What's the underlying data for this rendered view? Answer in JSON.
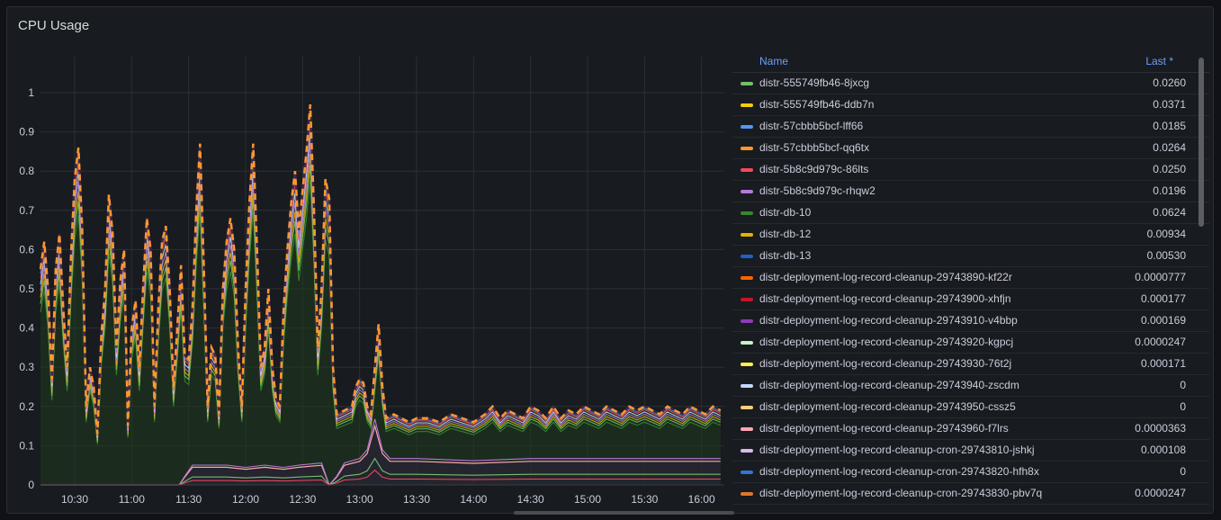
{
  "panel": {
    "title": "CPU Usage"
  },
  "chart_data": {
    "type": "line",
    "title": "CPU Usage",
    "x_ticks": [
      "10:30",
      "11:00",
      "11:30",
      "12:00",
      "12:30",
      "13:00",
      "13:30",
      "14:00",
      "14:30",
      "15:00",
      "15:30",
      "16:00"
    ],
    "y_ticks": [
      "0",
      "0.1",
      "0.2",
      "0.3",
      "0.4",
      "0.5",
      "0.6",
      "0.7",
      "0.8",
      "0.9",
      "1"
    ],
    "ylim": [
      0,
      1.0
    ],
    "grid": true,
    "legend_position": "right",
    "main_series_points": [
      [
        "10:12",
        0.55
      ],
      [
        "10:14",
        0.62
      ],
      [
        "10:16",
        0.5
      ],
      [
        "10:18",
        0.27
      ],
      [
        "10:20",
        0.55
      ],
      [
        "10:22",
        0.64
      ],
      [
        "10:24",
        0.45
      ],
      [
        "10:26",
        0.3
      ],
      [
        "10:28",
        0.58
      ],
      [
        "10:30",
        0.78
      ],
      [
        "10:32",
        0.86
      ],
      [
        "10:34",
        0.65
      ],
      [
        "10:36",
        0.2
      ],
      [
        "10:38",
        0.3
      ],
      [
        "10:40",
        0.25
      ],
      [
        "10:42",
        0.13
      ],
      [
        "10:44",
        0.38
      ],
      [
        "10:46",
        0.5
      ],
      [
        "10:48",
        0.74
      ],
      [
        "10:50",
        0.64
      ],
      [
        "10:52",
        0.35
      ],
      [
        "10:54",
        0.52
      ],
      [
        "10:56",
        0.6
      ],
      [
        "10:58",
        0.15
      ],
      [
        "11:00",
        0.4
      ],
      [
        "11:02",
        0.47
      ],
      [
        "11:04",
        0.3
      ],
      [
        "11:06",
        0.5
      ],
      [
        "11:08",
        0.68
      ],
      [
        "11:10",
        0.6
      ],
      [
        "11:12",
        0.2
      ],
      [
        "11:14",
        0.45
      ],
      [
        "11:16",
        0.62
      ],
      [
        "11:18",
        0.66
      ],
      [
        "11:20",
        0.5
      ],
      [
        "11:22",
        0.25
      ],
      [
        "11:24",
        0.4
      ],
      [
        "11:26",
        0.56
      ],
      [
        "11:28",
        0.33
      ],
      [
        "11:30",
        0.32
      ],
      [
        "11:32",
        0.45
      ],
      [
        "11:34",
        0.7
      ],
      [
        "11:36",
        0.87
      ],
      [
        "11:38",
        0.55
      ],
      [
        "11:40",
        0.2
      ],
      [
        "11:42",
        0.35
      ],
      [
        "11:44",
        0.33
      ],
      [
        "11:46",
        0.18
      ],
      [
        "11:48",
        0.5
      ],
      [
        "11:50",
        0.62
      ],
      [
        "11:52",
        0.68
      ],
      [
        "11:54",
        0.6
      ],
      [
        "11:56",
        0.35
      ],
      [
        "11:58",
        0.2
      ],
      [
        "12:00",
        0.5
      ],
      [
        "12:02",
        0.72
      ],
      [
        "12:04",
        0.87
      ],
      [
        "12:06",
        0.6
      ],
      [
        "12:08",
        0.3
      ],
      [
        "12:10",
        0.35
      ],
      [
        "12:12",
        0.5
      ],
      [
        "12:14",
        0.3
      ],
      [
        "12:16",
        0.22
      ],
      [
        "12:18",
        0.2
      ],
      [
        "12:20",
        0.45
      ],
      [
        "12:22",
        0.6
      ],
      [
        "12:24",
        0.72
      ],
      [
        "12:26",
        0.8
      ],
      [
        "12:28",
        0.65
      ],
      [
        "12:30",
        0.75
      ],
      [
        "12:32",
        0.85
      ],
      [
        "12:34",
        0.97
      ],
      [
        "12:36",
        0.7
      ],
      [
        "12:38",
        0.35
      ],
      [
        "12:40",
        0.5
      ],
      [
        "12:42",
        0.78
      ],
      [
        "12:44",
        0.73
      ],
      [
        "12:46",
        0.3
      ],
      [
        "12:48",
        0.18
      ],
      [
        "12:52",
        0.19
      ],
      [
        "12:56",
        0.2
      ],
      [
        "12:58",
        0.25
      ],
      [
        "13:00",
        0.27
      ],
      [
        "13:02",
        0.26
      ],
      [
        "13:04",
        0.2
      ],
      [
        "13:06",
        0.18
      ],
      [
        "13:08",
        0.3
      ],
      [
        "13:10",
        0.41
      ],
      [
        "13:12",
        0.25
      ],
      [
        "13:14",
        0.17
      ],
      [
        "13:18",
        0.18
      ],
      [
        "13:22",
        0.17
      ],
      [
        "13:26",
        0.16
      ],
      [
        "13:30",
        0.17
      ],
      [
        "13:36",
        0.17
      ],
      [
        "13:42",
        0.16
      ],
      [
        "13:48",
        0.18
      ],
      [
        "13:54",
        0.17
      ],
      [
        "14:00",
        0.16
      ],
      [
        "14:06",
        0.18
      ],
      [
        "14:10",
        0.2
      ],
      [
        "14:14",
        0.17
      ],
      [
        "14:18",
        0.19
      ],
      [
        "14:22",
        0.18
      ],
      [
        "14:26",
        0.17
      ],
      [
        "14:30",
        0.2
      ],
      [
        "14:34",
        0.19
      ],
      [
        "14:38",
        0.17
      ],
      [
        "14:42",
        0.2
      ],
      [
        "14:46",
        0.17
      ],
      [
        "14:50",
        0.19
      ],
      [
        "14:54",
        0.18
      ],
      [
        "14:58",
        0.2
      ],
      [
        "15:02",
        0.19
      ],
      [
        "15:06",
        0.18
      ],
      [
        "15:10",
        0.2
      ],
      [
        "15:14",
        0.19
      ],
      [
        "15:18",
        0.18
      ],
      [
        "15:22",
        0.2
      ],
      [
        "15:26",
        0.19
      ],
      [
        "15:30",
        0.2
      ],
      [
        "15:34",
        0.19
      ],
      [
        "15:38",
        0.18
      ],
      [
        "15:42",
        0.2
      ],
      [
        "15:46",
        0.19
      ],
      [
        "15:50",
        0.18
      ],
      [
        "15:54",
        0.2
      ],
      [
        "15:58",
        0.19
      ],
      [
        "16:02",
        0.18
      ],
      [
        "16:06",
        0.2
      ],
      [
        "16:10",
        0.19
      ]
    ],
    "low_series_points": [
      [
        "10:12",
        0.0
      ],
      [
        "11:25",
        0.0
      ],
      [
        "11:28",
        0.02
      ],
      [
        "11:32",
        0.045
      ],
      [
        "11:50",
        0.045
      ],
      [
        "12:00",
        0.04
      ],
      [
        "12:10",
        0.045
      ],
      [
        "12:20",
        0.04
      ],
      [
        "12:28",
        0.045
      ],
      [
        "12:40",
        0.05
      ],
      [
        "12:44",
        0.0
      ],
      [
        "12:48",
        0.02
      ],
      [
        "12:52",
        0.05
      ],
      [
        "13:00",
        0.06
      ],
      [
        "13:04",
        0.08
      ],
      [
        "13:08",
        0.15
      ],
      [
        "13:12",
        0.08
      ],
      [
        "13:16",
        0.06
      ],
      [
        "13:30",
        0.06
      ],
      [
        "14:00",
        0.055
      ],
      [
        "14:30",
        0.06
      ],
      [
        "15:00",
        0.06
      ],
      [
        "15:30",
        0.06
      ],
      [
        "16:10",
        0.06
      ]
    ]
  },
  "legend": {
    "header_name": "Name",
    "header_last": "Last *",
    "rows": [
      {
        "name": "distr-555749fb46-8jxcg",
        "last": "0.0260",
        "color": "#73bf69"
      },
      {
        "name": "distr-555749fb46-ddb7n",
        "last": "0.0371",
        "color": "#f2cc0c"
      },
      {
        "name": "distr-57cbbb5bcf-lff66",
        "last": "0.0185",
        "color": "#5794f2"
      },
      {
        "name": "distr-57cbbb5bcf-qq6tx",
        "last": "0.0264",
        "color": "#ff9830"
      },
      {
        "name": "distr-5b8c9d979c-86lts",
        "last": "0.0250",
        "color": "#f2495c"
      },
      {
        "name": "distr-5b8c9d979c-rhqw2",
        "last": "0.0196",
        "color": "#b877d9"
      },
      {
        "name": "distr-db-10",
        "last": "0.0624",
        "color": "#37872d"
      },
      {
        "name": "distr-db-12",
        "last": "0.00934",
        "color": "#e0b400"
      },
      {
        "name": "distr-db-13",
        "last": "0.00530",
        "color": "#1f60c4"
      },
      {
        "name": "distr-deployment-log-record-cleanup-29743890-kf22r",
        "last": "0.0000777",
        "color": "#fa6400"
      },
      {
        "name": "distr-deployment-log-record-cleanup-29743900-xhfjn",
        "last": "0.000177",
        "color": "#c4162a"
      },
      {
        "name": "distr-deployment-log-record-cleanup-29743910-v4bbp",
        "last": "0.000169",
        "color": "#8f3bb8"
      },
      {
        "name": "distr-deployment-log-record-cleanup-29743920-kgpcj",
        "last": "0.0000247",
        "color": "#c8f2c2"
      },
      {
        "name": "distr-deployment-log-record-cleanup-29743930-76t2j",
        "last": "0.000171",
        "color": "#ffee52"
      },
      {
        "name": "distr-deployment-log-record-cleanup-29743940-zscdm",
        "last": "0",
        "color": "#c0d8ff"
      },
      {
        "name": "distr-deployment-log-record-cleanup-29743950-cssz5",
        "last": "0",
        "color": "#ffcb7d"
      },
      {
        "name": "distr-deployment-log-record-cleanup-29743960-f7lrs",
        "last": "0.0000363",
        "color": "#ffa6b0"
      },
      {
        "name": "distr-deployment-log-record-cleanup-cron-29743810-jshkj",
        "last": "0.000108",
        "color": "#deb6f2"
      },
      {
        "name": "distr-deployment-log-record-cleanup-cron-29743820-hfh8x",
        "last": "0",
        "color": "#3274d9"
      },
      {
        "name": "distr-deployment-log-record-cleanup-cron-29743830-pbv7q",
        "last": "0.0000247",
        "color": "#e0752d"
      }
    ]
  }
}
